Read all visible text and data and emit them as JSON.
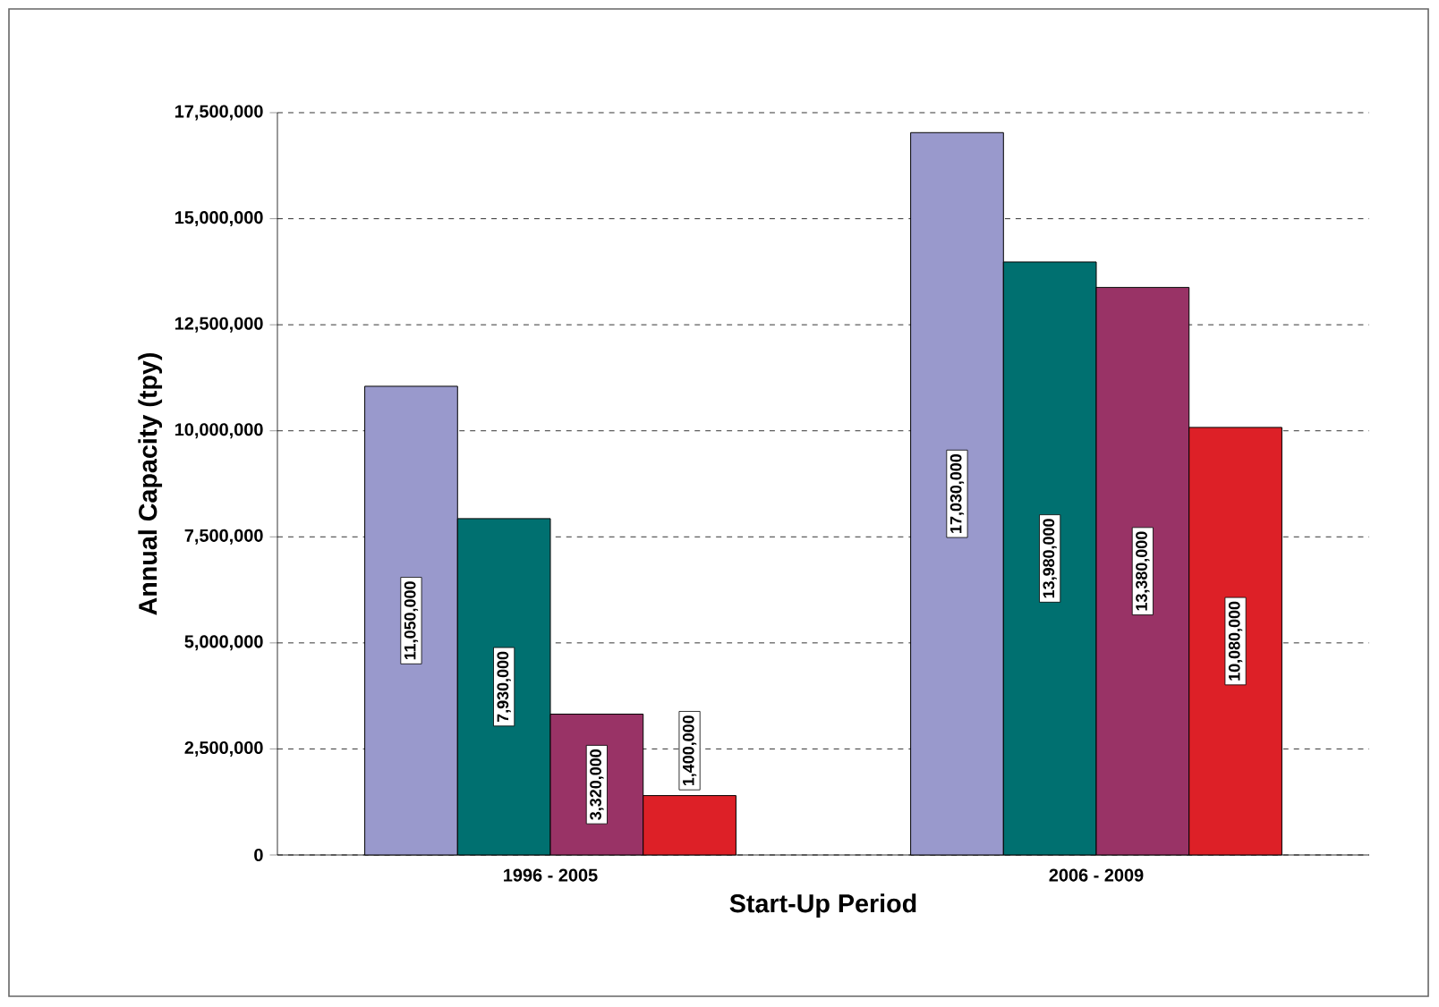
{
  "chart_data": {
    "type": "bar",
    "xlabel": "Start-Up Period",
    "ylabel": "Annual Capacity (tpy)",
    "categories": [
      "1996 - 2005",
      "2006 - 2009"
    ],
    "series": [
      {
        "color": "#9999cc",
        "values": [
          11050000,
          17030000
        ],
        "value_labels": [
          "11,050,000",
          "17,030,000"
        ]
      },
      {
        "color": "#007070",
        "values": [
          7930000,
          13980000
        ],
        "value_labels": [
          "7,930,000",
          "13,980,000"
        ]
      },
      {
        "color": "#993366",
        "values": [
          3320000,
          13380000
        ],
        "value_labels": [
          "3,320,000",
          "13,380,000"
        ]
      },
      {
        "color": "#dd2027",
        "values": [
          1400000,
          10080000
        ],
        "value_labels": [
          "1,400,000",
          "10,080,000"
        ]
      }
    ],
    "ylim": [
      0,
      17500000
    ],
    "yticks": [
      {
        "value": 0,
        "label": "0"
      },
      {
        "value": 2500000,
        "label": "2,500,000"
      },
      {
        "value": 5000000,
        "label": "5,000,000"
      },
      {
        "value": 7500000,
        "label": "7,500,000"
      },
      {
        "value": 10000000,
        "label": "10,000,000"
      },
      {
        "value": 12500000,
        "label": "12,500,000"
      },
      {
        "value": 15000000,
        "label": "15,000,000"
      },
      {
        "value": 17500000,
        "label": "17,500,000"
      }
    ],
    "grid": "y"
  }
}
